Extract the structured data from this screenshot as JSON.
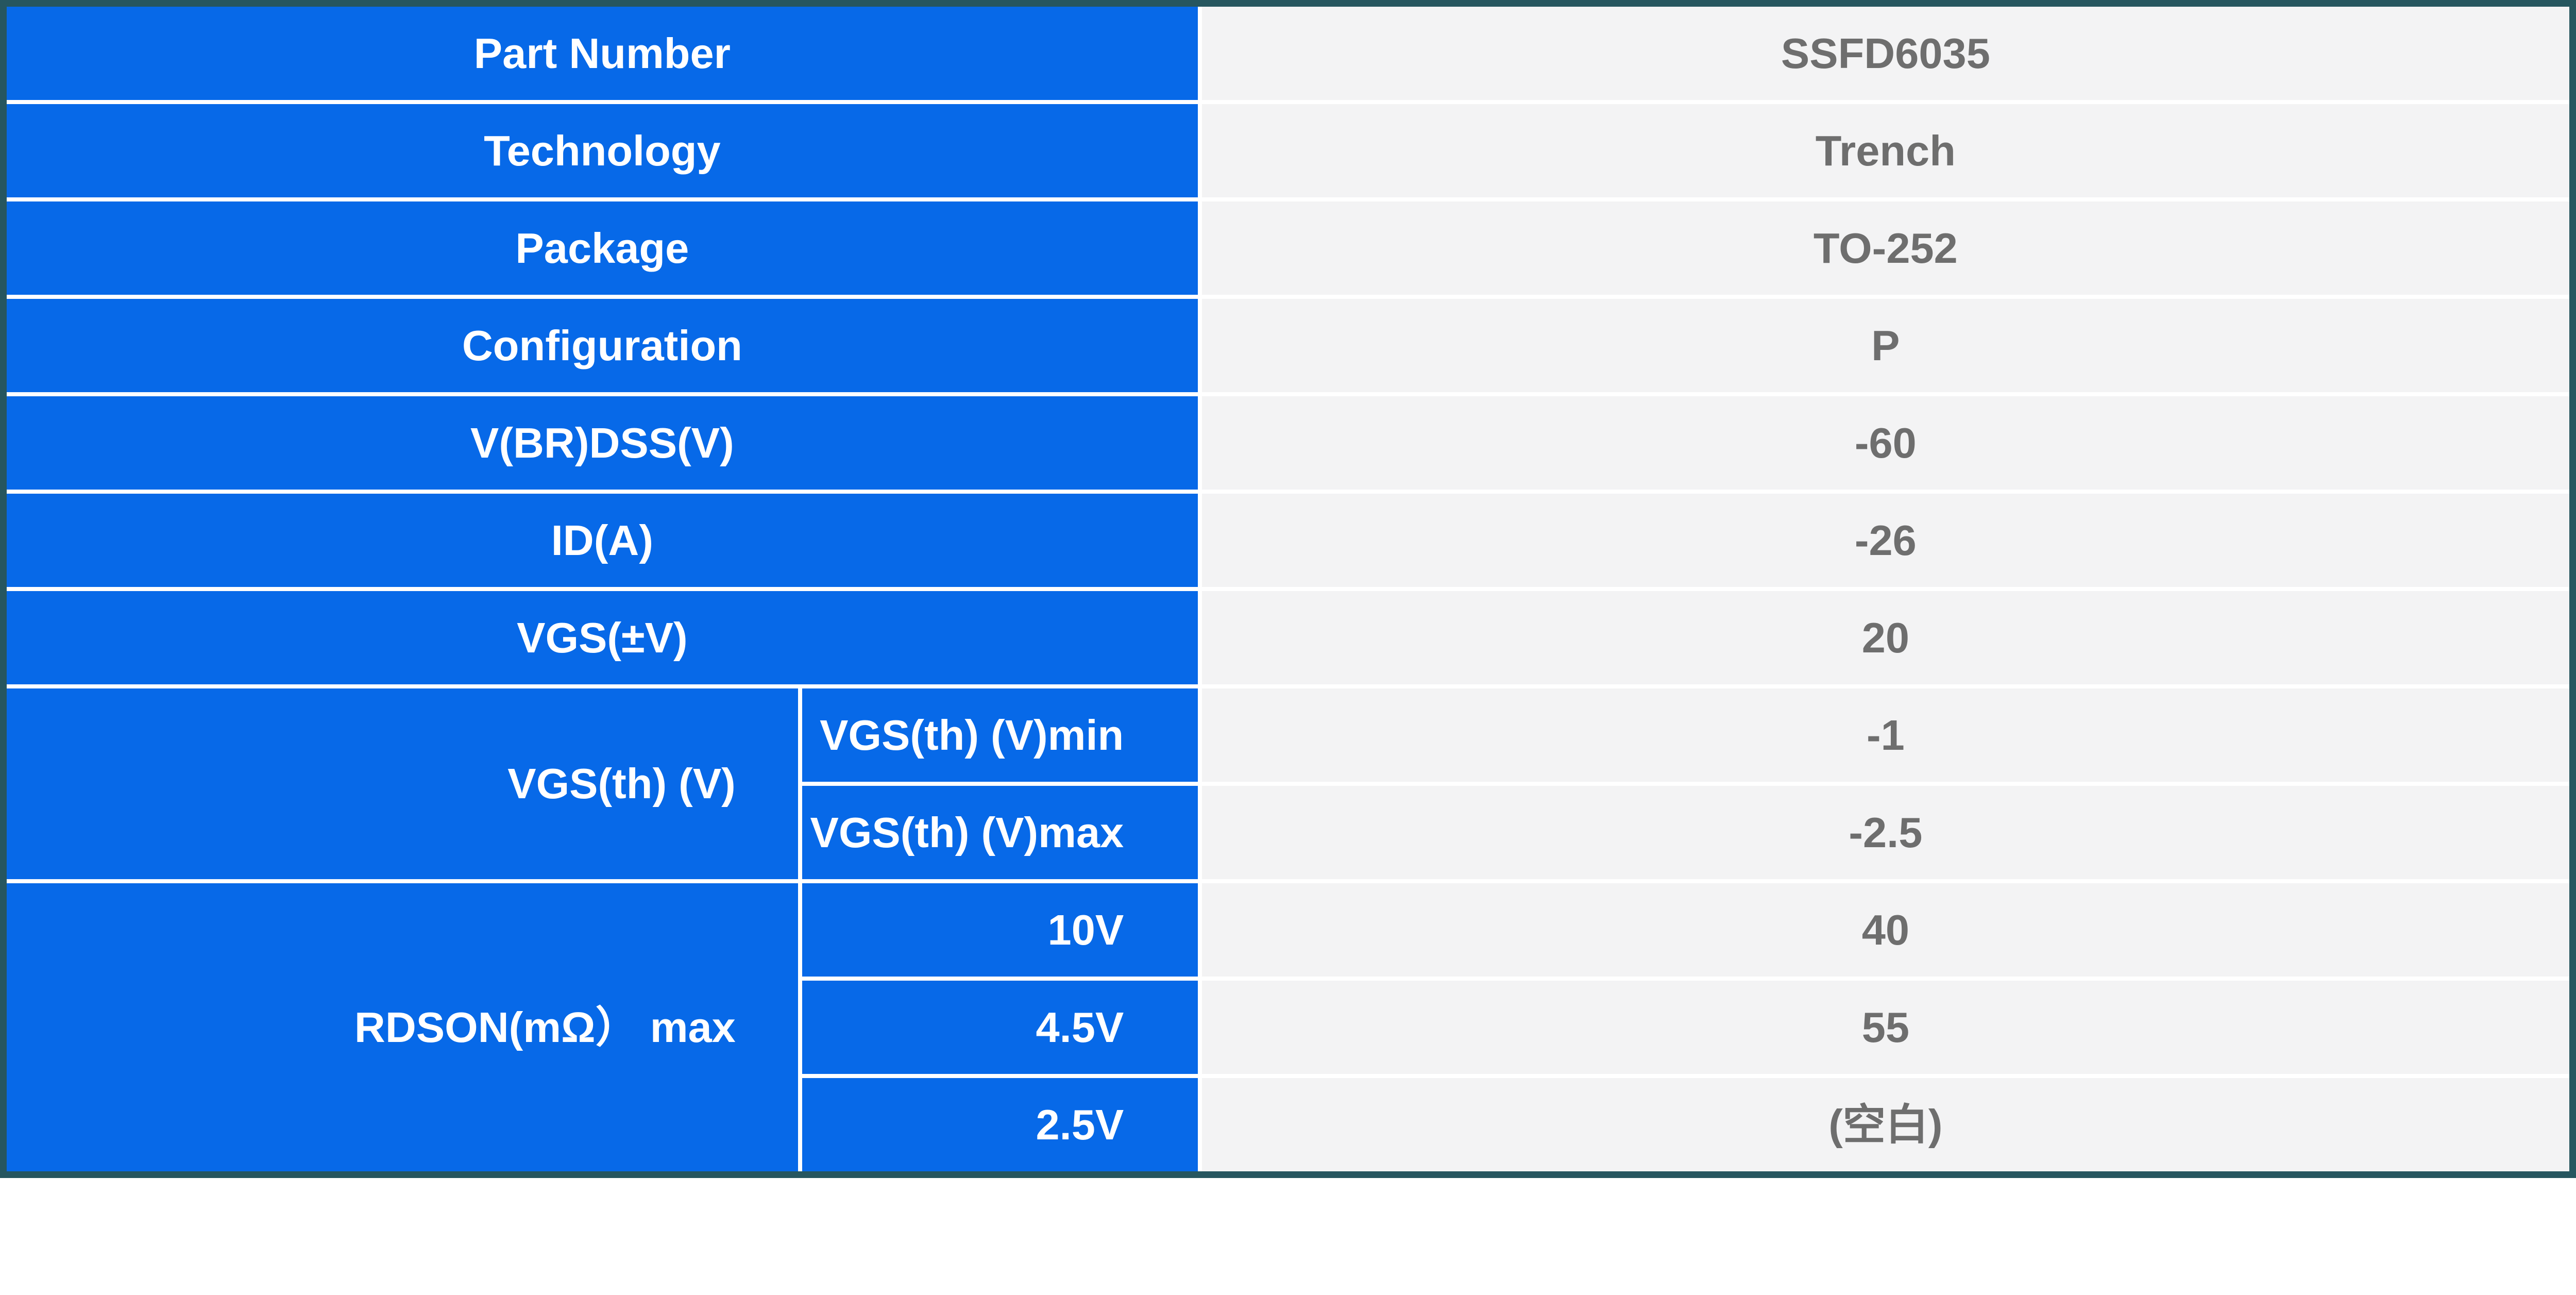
{
  "colors": {
    "label_blue": "#0769E8",
    "label_text": "#FFFFFF",
    "value_bg": "#F3F3F4",
    "value_text": "#6E6E6E",
    "frame_teal": "#26565F",
    "gap_white": "#FFFFFF"
  },
  "table": {
    "rows": [
      {
        "label": "Part Number",
        "value": "SSFD6035"
      },
      {
        "label": "Technology",
        "value": "Trench"
      },
      {
        "label": "Package",
        "value": "TO-252"
      },
      {
        "label": "Configuration",
        "value": "P"
      },
      {
        "label": "V(BR)DSS(V)",
        "value": "-60"
      },
      {
        "label": "ID(A)",
        "value": "-26"
      },
      {
        "label": "VGS(±V)",
        "value": "20"
      }
    ],
    "groups": [
      {
        "label": "VGS(th) (V)",
        "children": [
          {
            "label": "VGS(th) (V)min",
            "value": "-1"
          },
          {
            "label": "VGS(th) (V)max",
            "value": "-2.5"
          }
        ]
      },
      {
        "label": "RDSON(mΩ） max",
        "children": [
          {
            "label": "10V",
            "value": "40"
          },
          {
            "label": "4.5V",
            "value": "55"
          },
          {
            "label": "2.5V",
            "value": "(空白)"
          }
        ]
      }
    ]
  }
}
